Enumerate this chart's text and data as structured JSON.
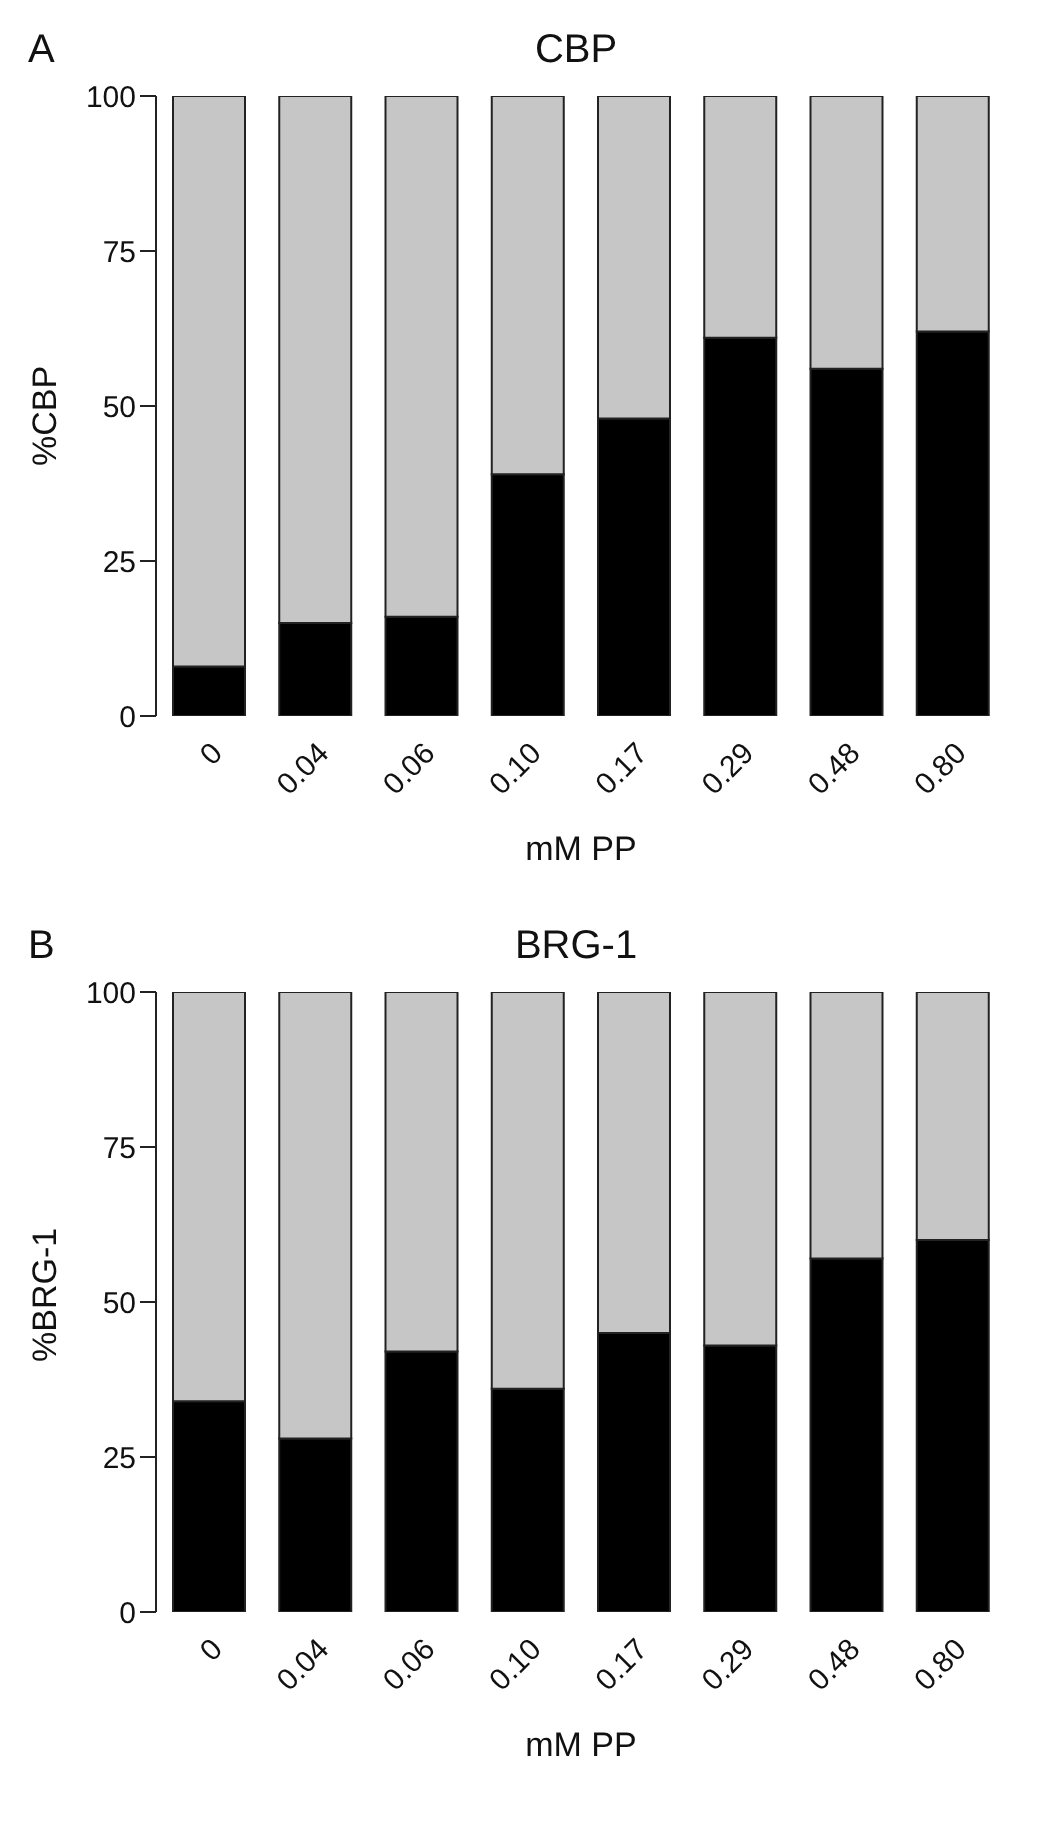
{
  "chart_data": [
    {
      "type": "bar",
      "title": "CBP",
      "annotations": [
        "A"
      ],
      "xlabel": "mM PP",
      "ylabel": "%CBP",
      "categories": [
        "0",
        "0.04",
        "0.06",
        "0.10",
        "0.17",
        "0.29",
        "0.48",
        "0.80"
      ],
      "stacked": true,
      "series": [
        {
          "color": "#000000",
          "values": [
            8,
            15,
            16,
            39,
            48,
            61,
            56,
            62
          ]
        },
        {
          "color": "#c6c6c6",
          "values": [
            92,
            85,
            84,
            61,
            52,
            39,
            44,
            38
          ]
        }
      ],
      "ylim": [
        0,
        100
      ],
      "yticks": [
        0,
        25,
        50,
        75,
        100
      ],
      "grid": false,
      "legend": false
    },
    {
      "type": "bar",
      "title": "BRG-1",
      "annotations": [
        "B"
      ],
      "xlabel": "mM PP",
      "ylabel": "%BRG-1",
      "categories": [
        "0",
        "0.04",
        "0.06",
        "0.10",
        "0.17",
        "0.29",
        "0.48",
        "0.80"
      ],
      "stacked": true,
      "series": [
        {
          "color": "#000000",
          "values": [
            34,
            28,
            42,
            36,
            45,
            43,
            57,
            60
          ]
        },
        {
          "color": "#c6c6c6",
          "values": [
            66,
            72,
            58,
            64,
            55,
            57,
            43,
            40
          ]
        }
      ],
      "ylim": [
        0,
        100
      ],
      "yticks": [
        0,
        25,
        50,
        75,
        100
      ],
      "grid": false,
      "legend": false
    }
  ]
}
